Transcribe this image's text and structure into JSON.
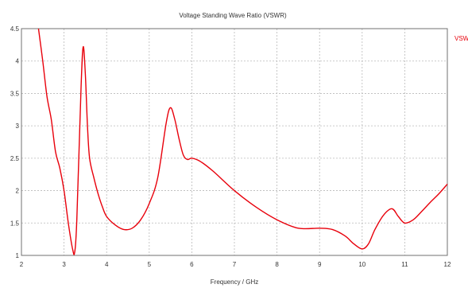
{
  "chart_data": {
    "type": "line",
    "title": "Voltage Standing Wave Ratio (VSWR)",
    "xlabel": "Frequency / GHz",
    "ylabel": "",
    "xlim": [
      2,
      12
    ],
    "ylim": [
      1,
      4.5
    ],
    "x_ticks": [
      "2",
      "3",
      "4",
      "5",
      "6",
      "7",
      "8",
      "9",
      "10",
      "11",
      "12"
    ],
    "y_ticks": [
      "1",
      "1.5",
      "2",
      "2.5",
      "3",
      "3.5",
      "4",
      "4.5"
    ],
    "grid": true,
    "legend_position": "top-right",
    "series": [
      {
        "name": "VSWR",
        "color": "#e8000b",
        "x": [
          2.4,
          2.5,
          2.6,
          2.7,
          2.8,
          2.9,
          3.0,
          3.1,
          3.2,
          3.25,
          3.3,
          3.4,
          3.45,
          3.5,
          3.55,
          3.6,
          3.7,
          3.8,
          3.9,
          4.0,
          4.2,
          4.4,
          4.6,
          4.8,
          5.0,
          5.2,
          5.4,
          5.5,
          5.6,
          5.7,
          5.8,
          5.9,
          6.0,
          6.2,
          6.5,
          7.0,
          7.5,
          8.0,
          8.5,
          9.0,
          9.3,
          9.6,
          9.8,
          10.0,
          10.15,
          10.3,
          10.5,
          10.7,
          10.85,
          11.0,
          11.2,
          11.4,
          11.6,
          11.8,
          12.0
        ],
        "y": [
          4.5,
          4.0,
          3.45,
          3.1,
          2.6,
          2.35,
          2.0,
          1.5,
          1.1,
          1.05,
          1.55,
          3.6,
          4.22,
          3.8,
          3.0,
          2.5,
          2.2,
          1.95,
          1.75,
          1.6,
          1.47,
          1.4,
          1.42,
          1.55,
          1.8,
          2.2,
          3.05,
          3.28,
          3.1,
          2.8,
          2.55,
          2.48,
          2.5,
          2.45,
          2.3,
          2.0,
          1.75,
          1.55,
          1.42,
          1.42,
          1.4,
          1.3,
          1.18,
          1.1,
          1.18,
          1.4,
          1.62,
          1.72,
          1.6,
          1.5,
          1.55,
          1.68,
          1.82,
          1.95,
          2.1
        ]
      }
    ]
  }
}
